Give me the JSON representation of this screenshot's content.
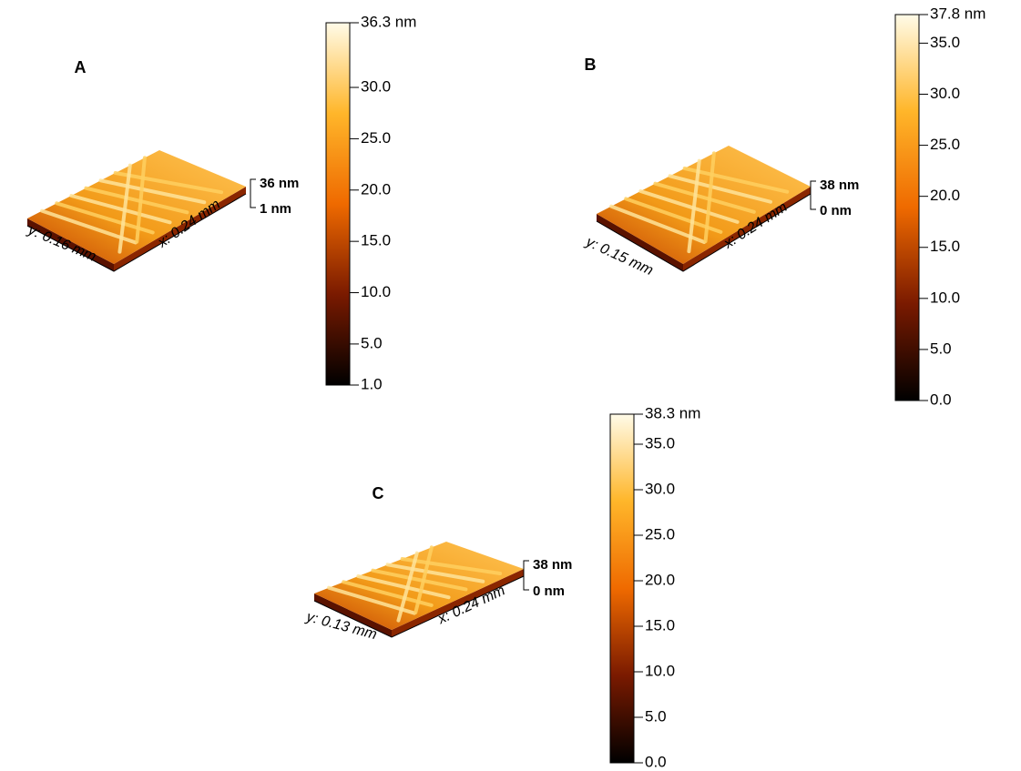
{
  "panels": [
    {
      "label": "A",
      "surface": {
        "z_top": "36 nm",
        "z_bottom": "1 nm",
        "x_label": "x: 0.24 mm",
        "y_label": "y: 0.16 mm"
      },
      "colorbar": {
        "max": 36.3,
        "max_label": "36.3 nm",
        "ticks": [
          {
            "value": 1,
            "label": "1.0"
          },
          {
            "value": 5,
            "label": "5.0"
          },
          {
            "value": 10,
            "label": "10.0"
          },
          {
            "value": 15,
            "label": "15.0"
          },
          {
            "value": 20,
            "label": "20.0"
          },
          {
            "value": 25,
            "label": "25.0"
          },
          {
            "value": 30,
            "label": "30.0"
          }
        ]
      }
    },
    {
      "label": "B",
      "surface": {
        "z_top": "38 nm",
        "z_bottom": "0 nm",
        "x_label": "x: 0.24 mm",
        "y_label": "y: 0.15 mm"
      },
      "colorbar": {
        "max": 37.8,
        "max_label": "37.8 nm",
        "ticks": [
          {
            "value": 0,
            "label": "0.0"
          },
          {
            "value": 5,
            "label": "5.0"
          },
          {
            "value": 10,
            "label": "10.0"
          },
          {
            "value": 15,
            "label": "15.0"
          },
          {
            "value": 20,
            "label": "20.0"
          },
          {
            "value": 25,
            "label": "25.0"
          },
          {
            "value": 30,
            "label": "30.0"
          },
          {
            "value": 35,
            "label": "35.0"
          }
        ]
      }
    },
    {
      "label": "C",
      "surface": {
        "z_top": "38 nm",
        "z_bottom": "0 nm",
        "x_label": "x: 0.24 mm",
        "y_label": "y: 0.13 mm"
      },
      "colorbar": {
        "max": 38.3,
        "max_label": "38.3 nm",
        "ticks": [
          {
            "value": 0,
            "label": "0.0"
          },
          {
            "value": 5,
            "label": "5.0"
          },
          {
            "value": 10,
            "label": "10.0"
          },
          {
            "value": 15,
            "label": "15.0"
          },
          {
            "value": 20,
            "label": "20.0"
          },
          {
            "value": 25,
            "label": "25.0"
          },
          {
            "value": 30,
            "label": "30.0"
          },
          {
            "value": 35,
            "label": "35.0"
          }
        ]
      }
    }
  ]
}
